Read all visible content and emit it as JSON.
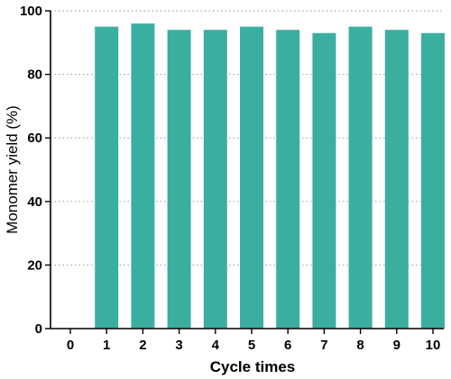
{
  "chart_data": {
    "type": "bar",
    "title": "",
    "xlabel": "Cycle times",
    "ylabel": "Monomer yield (%)",
    "categories": [
      "1",
      "2",
      "3",
      "4",
      "5",
      "6",
      "7",
      "8",
      "9",
      "10"
    ],
    "values": [
      95,
      96,
      94,
      94,
      95,
      94,
      93,
      95,
      94,
      93
    ],
    "xlim": [
      0,
      10
    ],
    "ylim": [
      0,
      100
    ],
    "x_ticks": [
      "0",
      "1",
      "2",
      "3",
      "4",
      "5",
      "6",
      "7",
      "8",
      "9",
      "10"
    ],
    "y_ticks": [
      "0",
      "20",
      "40",
      "60",
      "80",
      "100"
    ],
    "grid": "horizontal dotted",
    "bar_color": "#3AAFA0",
    "legend": "none"
  }
}
